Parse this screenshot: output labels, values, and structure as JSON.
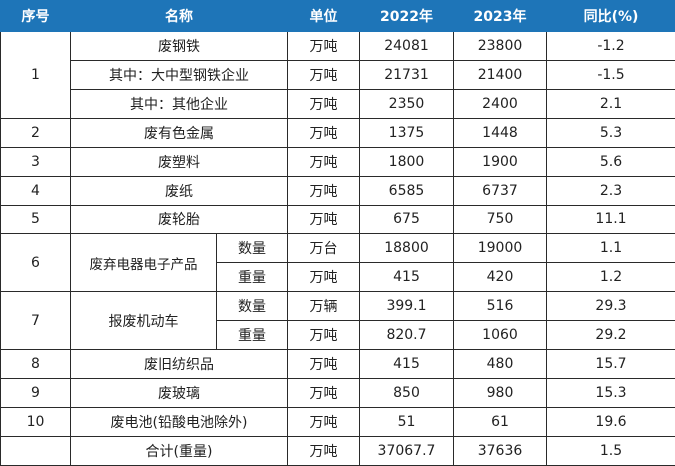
{
  "table": {
    "headers": [
      "序号",
      "名称",
      "单位",
      "2022年",
      "2023年",
      "同比(%)"
    ],
    "rows": [
      {
        "no": "1",
        "name": "废钢铁",
        "unit": "万吨",
        "v2022": "24081",
        "v2023": "23800",
        "yoy": "-1.2"
      },
      {
        "name": "其中：大中型钢铁企业",
        "unit": "万吨",
        "v2022": "21731",
        "v2023": "21400",
        "yoy": "-1.5"
      },
      {
        "name": "其中：其他企业",
        "unit": "万吨",
        "v2022": "2350",
        "v2023": "2400",
        "yoy": "2.1"
      },
      {
        "no": "2",
        "name": "废有色金属",
        "unit": "万吨",
        "v2022": "1375",
        "v2023": "1448",
        "yoy": "5.3"
      },
      {
        "no": "3",
        "name": "废塑料",
        "unit": "万吨",
        "v2022": "1800",
        "v2023": "1900",
        "yoy": "5.6"
      },
      {
        "no": "4",
        "name": "废纸",
        "unit": "万吨",
        "v2022": "6585",
        "v2023": "6737",
        "yoy": "2.3"
      },
      {
        "no": "5",
        "name": "废轮胎",
        "unit": "万吨",
        "v2022": "675",
        "v2023": "750",
        "yoy": "11.1"
      },
      {
        "no": "6",
        "name": "废弃电器电子产品",
        "sub": "数量",
        "unit": "万台",
        "v2022": "18800",
        "v2023": "19000",
        "yoy": "1.1"
      },
      {
        "sub": "重量",
        "unit": "万吨",
        "v2022": "415",
        "v2023": "420",
        "yoy": "1.2"
      },
      {
        "no": "7",
        "name": "报废机动车",
        "sub": "数量",
        "unit": "万辆",
        "v2022": "399.1",
        "v2023": "516",
        "yoy": "29.3"
      },
      {
        "sub": "重量",
        "unit": "万吨",
        "v2022": "820.7",
        "v2023": "1060",
        "yoy": "29.2"
      },
      {
        "no": "8",
        "name": "废旧纺织品",
        "unit": "万吨",
        "v2022": "415",
        "v2023": "480",
        "yoy": "15.7"
      },
      {
        "no": "9",
        "name": "废玻璃",
        "unit": "万吨",
        "v2022": "850",
        "v2023": "980",
        "yoy": "15.3"
      },
      {
        "no": "10",
        "name": "废电池(铅酸电池除外)",
        "unit": "万吨",
        "v2022": "51",
        "v2023": "61",
        "yoy": "19.6"
      },
      {
        "name": "合计(重量)",
        "unit": "万吨",
        "v2022": "37067.7",
        "v2023": "37636",
        "yoy": "1.5"
      }
    ]
  },
  "colors": {
    "header_bg": "#1e75b8",
    "header_text": "#ffffff",
    "grid": "#2a2a2a"
  }
}
